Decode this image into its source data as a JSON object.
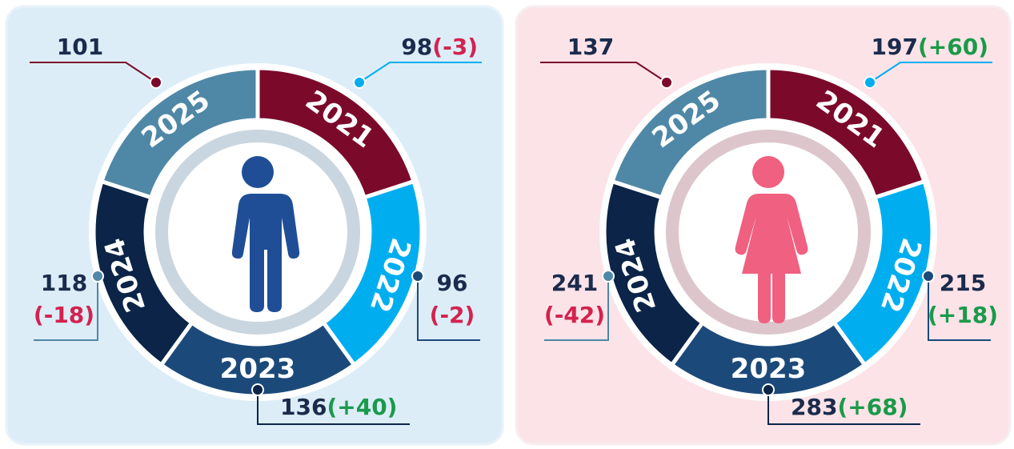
{
  "panels": [
    {
      "segments": [
        {
          "year": "2021",
          "value": "101"
        },
        {
          "year": "2022",
          "value": "98",
          "change": "(-3)"
        },
        {
          "year": "2023",
          "value": "96",
          "change": "(-2)"
        },
        {
          "year": "2024",
          "value": "136",
          "change": "(+40)"
        },
        {
          "year": "2025",
          "value": "118",
          "change": "(-18)"
        }
      ]
    },
    {
      "segments": [
        {
          "year": "2021",
          "value": "137"
        },
        {
          "year": "2022",
          "value": "197",
          "change": "(+60)"
        },
        {
          "year": "2023",
          "value": "215",
          "change": "(+18)"
        },
        {
          "year": "2024",
          "value": "283",
          "change": "(+68)"
        },
        {
          "year": "2025",
          "value": "241",
          "change": "(-42)"
        }
      ]
    }
  ]
}
